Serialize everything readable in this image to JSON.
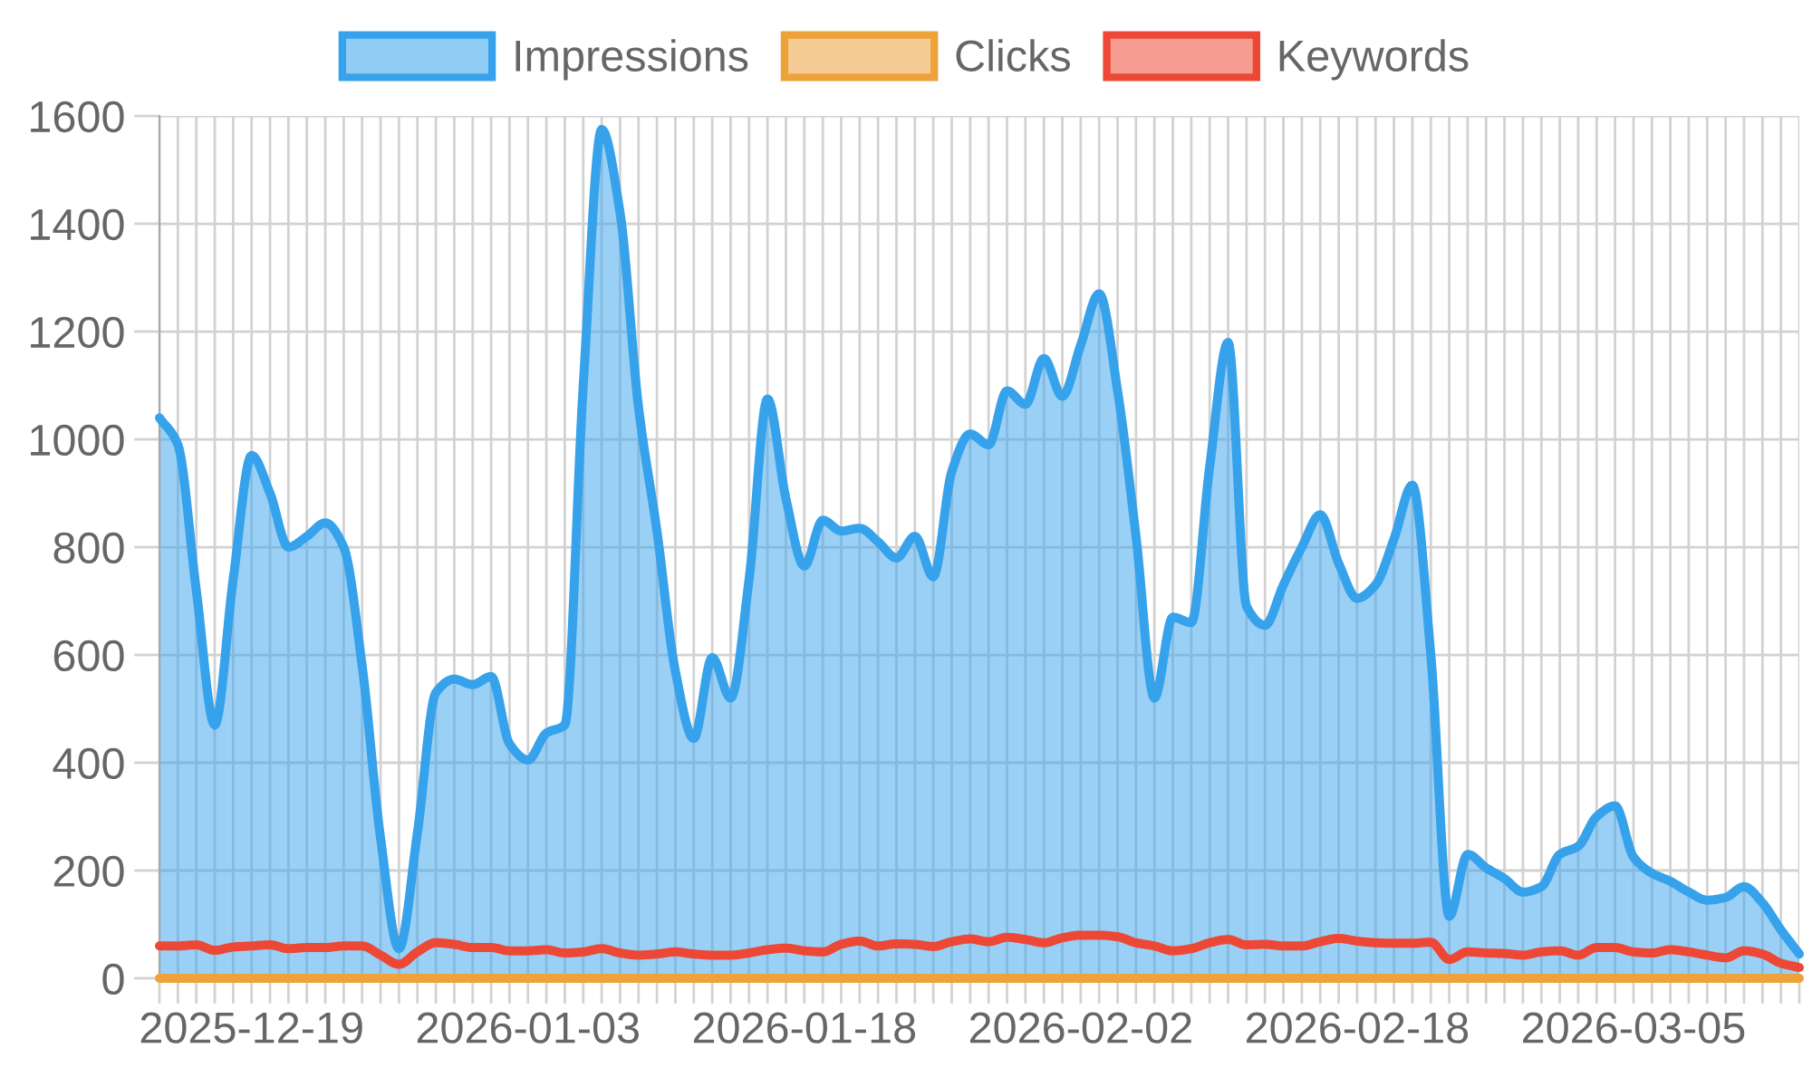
{
  "chart_data": {
    "type": "line",
    "categories": [
      null,
      null,
      null,
      null,
      null,
      "2025-12-19",
      null,
      null,
      null,
      null,
      null,
      null,
      null,
      null,
      null,
      null,
      null,
      null,
      null,
      null,
      "2026-01-03",
      null,
      null,
      null,
      null,
      null,
      null,
      null,
      null,
      null,
      null,
      null,
      null,
      null,
      null,
      "2026-01-18",
      null,
      null,
      null,
      null,
      null,
      null,
      null,
      null,
      null,
      null,
      null,
      null,
      null,
      null,
      "2026-02-02",
      null,
      null,
      null,
      null,
      null,
      null,
      null,
      null,
      null,
      null,
      null,
      null,
      null,
      null,
      "2026-02-18",
      null,
      null,
      null,
      null,
      null,
      null,
      null,
      null,
      null,
      null,
      null,
      null,
      null,
      null,
      "2026-03-05",
      null,
      null,
      null,
      null,
      null,
      null,
      null,
      null,
      null
    ],
    "series": [
      {
        "name": "Impressions",
        "type": "area",
        "color": "#36a2eb",
        "values": [
          1040,
          990,
          720,
          470,
          740,
          970,
          900,
          800,
          820,
          845,
          800,
          580,
          260,
          55,
          270,
          530,
          555,
          545,
          560,
          435,
          405,
          455,
          470,
          1100,
          1575,
          1420,
          1060,
          830,
          570,
          445,
          595,
          520,
          740,
          1075,
          890,
          765,
          850,
          830,
          835,
          810,
          780,
          820,
          745,
          940,
          1010,
          990,
          1090,
          1065,
          1150,
          1080,
          1175,
          1270,
          1090,
          820,
          520,
          670,
          660,
          950,
          1180,
          690,
          655,
          730,
          800,
          860,
          770,
          705,
          730,
          815,
          915,
          600,
          115,
          230,
          205,
          185,
          160,
          170,
          230,
          245,
          300,
          320,
          225,
          195,
          180,
          160,
          145,
          150,
          170,
          140,
          90,
          45
        ]
      },
      {
        "name": "Clicks",
        "color": "#eda23a",
        "values": [
          0,
          0,
          0,
          0,
          0,
          0,
          0,
          0,
          0,
          0,
          0,
          0,
          0,
          0,
          0,
          0,
          0,
          0,
          0,
          0,
          0,
          0,
          0,
          0,
          0,
          0,
          0,
          0,
          0,
          0,
          0,
          0,
          0,
          0,
          0,
          0,
          0,
          0,
          0,
          0,
          0,
          0,
          0,
          0,
          0,
          0,
          0,
          0,
          0,
          0,
          0,
          0,
          0,
          0,
          0,
          0,
          0,
          0,
          0,
          0,
          0,
          0,
          0,
          0,
          0,
          0,
          0,
          0,
          0,
          0,
          0,
          0,
          0,
          0,
          0,
          0,
          0,
          0,
          0,
          0,
          0,
          0,
          0,
          0,
          0,
          0,
          0,
          0,
          0,
          0
        ]
      },
      {
        "name": "Keywords",
        "color": "#ec4835",
        "values": [
          60,
          60,
          62,
          52,
          58,
          60,
          62,
          55,
          57,
          57,
          60,
          60,
          43,
          26,
          49,
          66,
          63,
          57,
          57,
          51,
          51,
          53,
          47,
          49,
          55,
          47,
          43,
          45,
          49,
          45,
          43,
          43,
          47,
          53,
          56,
          51,
          49,
          63,
          69,
          60,
          64,
          63,
          59,
          68,
          73,
          68,
          76,
          72,
          66,
          75,
          80,
          80,
          77,
          66,
          60,
          51,
          55,
          66,
          72,
          62,
          63,
          60,
          60,
          68,
          74,
          69,
          66,
          65,
          65,
          67,
          35,
          49,
          47,
          46,
          43,
          49,
          51,
          43,
          57,
          57,
          49,
          47,
          53,
          49,
          43,
          38,
          51,
          45,
          28,
          20
        ]
      }
    ],
    "ylim": [
      0,
      1600
    ],
    "yticks": [
      0,
      200,
      400,
      600,
      800,
      1000,
      1200,
      1400,
      1600
    ],
    "grid": true,
    "legend": "top"
  }
}
